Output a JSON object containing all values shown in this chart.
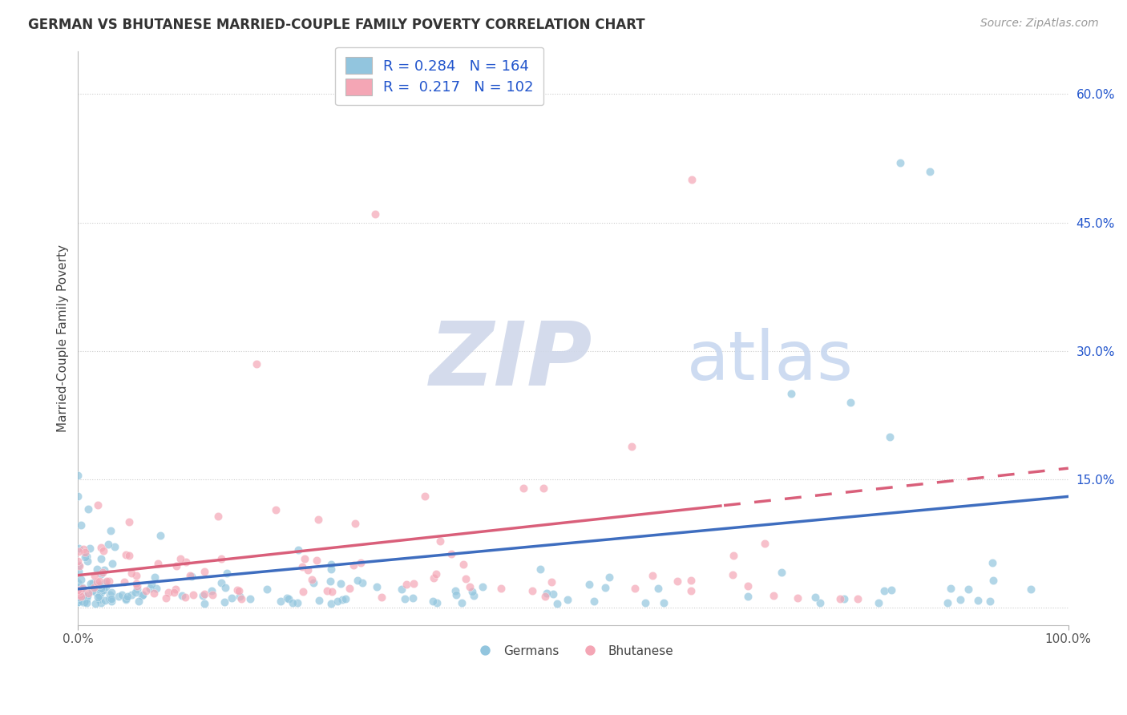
{
  "title": "GERMAN VS BHUTANESE MARRIED-COUPLE FAMILY POVERTY CORRELATION CHART",
  "source": "Source: ZipAtlas.com",
  "ylabel": "Married-Couple Family Poverty",
  "xlim": [
    0.0,
    1.0
  ],
  "ylim": [
    -0.02,
    0.65
  ],
  "x_ticks": [
    0.0,
    1.0
  ],
  "x_tick_labels": [
    "0.0%",
    "100.0%"
  ],
  "y_ticks": [
    0.0,
    0.15,
    0.3,
    0.45,
    0.6
  ],
  "y_tick_labels": [
    "",
    "15.0%",
    "30.0%",
    "45.0%",
    "60.0%"
  ],
  "german_color": "#92c5de",
  "bhutanese_color": "#f4a6b5",
  "german_line_color": "#3e6dbf",
  "bhutanese_line_color": "#d95f7a",
  "R_german": 0.284,
  "N_german": 164,
  "R_bhutanese": 0.217,
  "N_bhutanese": 102,
  "stat_color": "#2255cc",
  "background_color": "#ffffff",
  "grid_color": "#cccccc",
  "title_fontsize": 12,
  "source_fontsize": 10,
  "ylabel_fontsize": 11,
  "tick_fontsize": 11,
  "legend_fontsize": 11,
  "stats_fontsize": 12,
  "watermark_zip_color": "#d0d8ea",
  "watermark_atlas_color": "#c8d8f0"
}
